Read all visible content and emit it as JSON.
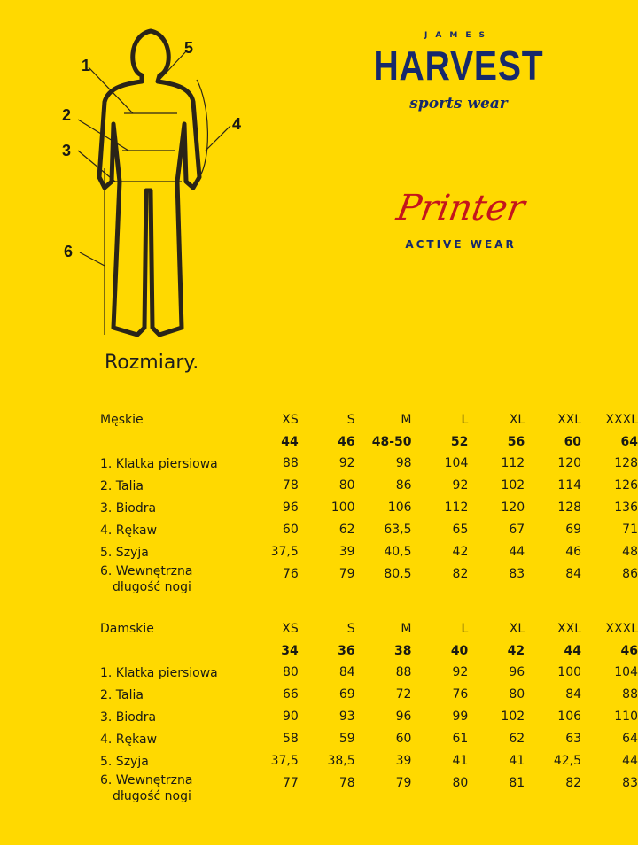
{
  "title": "Rozmiary.",
  "logos": {
    "harvest": {
      "top": "JAMES",
      "main": "HARVEST",
      "sub": "sports wear"
    },
    "printer": {
      "main": "Printer",
      "sub": "ACTIVE WEAR"
    }
  },
  "figure_labels": [
    "1",
    "2",
    "3",
    "4",
    "5",
    "6"
  ],
  "colors": {
    "background": "#FFD900",
    "harvest": "#16296b",
    "printer": "#c4161c"
  },
  "tables": [
    {
      "heading": "Męskie",
      "sizes": [
        "XS",
        "S",
        "M",
        "L",
        "XL",
        "XXL",
        "XXXL"
      ],
      "numbers": [
        "44",
        "46",
        "48-50",
        "52",
        "56",
        "60",
        "64"
      ],
      "rows": [
        {
          "label": "1. Klatka piersiowa",
          "values": [
            "88",
            "92",
            "98",
            "104",
            "112",
            "120",
            "128"
          ]
        },
        {
          "label": "2. Talia",
          "values": [
            "78",
            "80",
            "86",
            "92",
            "102",
            "114",
            "126"
          ]
        },
        {
          "label": "3. Biodra",
          "values": [
            "96",
            "100",
            "106",
            "112",
            "120",
            "128",
            "136"
          ]
        },
        {
          "label": "4. Rękaw",
          "values": [
            "60",
            "62",
            "63,5",
            "65",
            "67",
            "69",
            "71"
          ]
        },
        {
          "label": "5. Szyja",
          "values": [
            "37,5",
            "39",
            "40,5",
            "42",
            "44",
            "46",
            "48"
          ]
        },
        {
          "label": "6. Wewnętrzna",
          "label2": "długość nogi",
          "values": [
            "76",
            "79",
            "80,5",
            "82",
            "83",
            "84",
            "86"
          ]
        }
      ]
    },
    {
      "heading": "Damskie",
      "sizes": [
        "XS",
        "S",
        "M",
        "L",
        "XL",
        "XXL",
        "XXXL"
      ],
      "numbers": [
        "34",
        "36",
        "38",
        "40",
        "42",
        "44",
        "46"
      ],
      "rows": [
        {
          "label": "1. Klatka piersiowa",
          "values": [
            "80",
            "84",
            "88",
            "92",
            "96",
            "100",
            "104"
          ]
        },
        {
          "label": "2. Talia",
          "values": [
            "66",
            "69",
            "72",
            "76",
            "80",
            "84",
            "88"
          ]
        },
        {
          "label": "3. Biodra",
          "values": [
            "90",
            "93",
            "96",
            "99",
            "102",
            "106",
            "110"
          ]
        },
        {
          "label": "4. Rękaw",
          "values": [
            "58",
            "59",
            "60",
            "61",
            "62",
            "63",
            "64"
          ]
        },
        {
          "label": "5. Szyja",
          "values": [
            "37,5",
            "38,5",
            "39",
            "41",
            "41",
            "42,5",
            "44"
          ]
        },
        {
          "label": "6. Wewnętrzna",
          "label2": "długość nogi",
          "values": [
            "77",
            "78",
            "79",
            "80",
            "81",
            "82",
            "83"
          ]
        }
      ]
    }
  ]
}
